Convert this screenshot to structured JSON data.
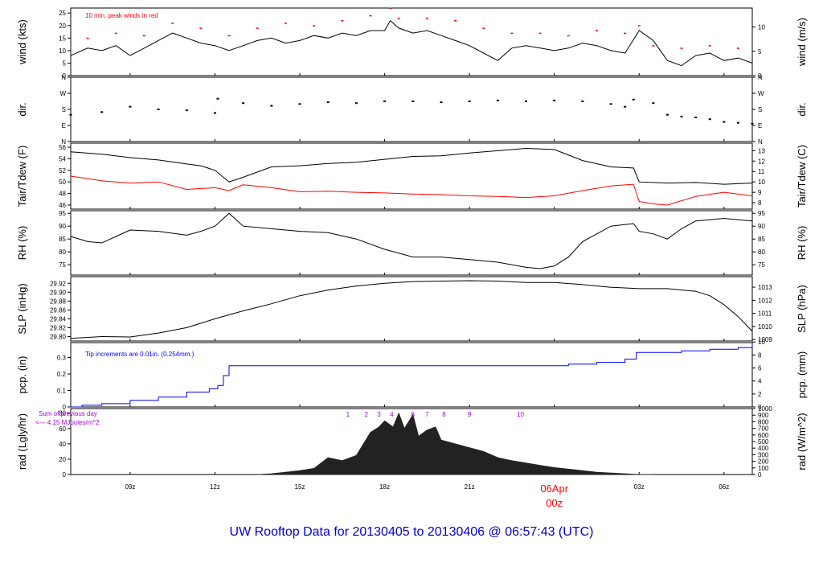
{
  "title": "UW Rooftop Data for 20130405  to  20130406 @ 06:57:43  (UTC)",
  "colors": {
    "axis": "#000000",
    "red": "#ff0000",
    "blue": "#0000ff",
    "purple": "#aa00dd",
    "title": "#0000cc"
  },
  "time_axis": {
    "range": [
      6.9,
      31.0
    ],
    "ticks": [
      {
        "t": 9,
        "label": "09z"
      },
      {
        "t": 12,
        "label": "12z"
      },
      {
        "t": 15,
        "label": "15z"
      },
      {
        "t": 18,
        "label": "18z"
      },
      {
        "t": 21,
        "label": "21z"
      },
      {
        "t": 27,
        "label": "03z"
      },
      {
        "t": 30,
        "label": "06z"
      }
    ],
    "day_tick": {
      "t": 24,
      "date": "06Apr",
      "hour": "00z"
    }
  },
  "chart_data": [
    {
      "type": "line",
      "id": "wind",
      "ylabel": "wind (kts)",
      "ylabel_right": "wind (m/s)",
      "ylim": [
        0,
        27
      ],
      "yticks": [
        0,
        5,
        10,
        15,
        20,
        25
      ],
      "yticks_right": [
        {
          "v": 0,
          "label": "0"
        },
        {
          "v": 9.72,
          "label": "5"
        },
        {
          "v": 19.44,
          "label": "10"
        }
      ],
      "annotation": "10 min. peak winds in red",
      "series": [
        {
          "color": "black",
          "x": [
            6.9,
            7.5,
            8.0,
            8.5,
            9.0,
            9.5,
            10.0,
            10.5,
            11.0,
            11.5,
            12.0,
            12.5,
            13.0,
            13.5,
            14.0,
            14.5,
            15.0,
            15.5,
            16.0,
            16.5,
            17.0,
            17.5,
            18.0,
            18.2,
            18.5,
            19.0,
            19.5,
            20.0,
            20.5,
            21.0,
            21.5,
            22.0,
            22.5,
            23.0,
            23.5,
            24.0,
            24.5,
            25.0,
            25.5,
            26.0,
            26.5,
            27.0,
            27.5,
            28.0,
            28.5,
            29.0,
            29.5,
            30.0,
            30.5,
            31.0
          ],
          "y": [
            8,
            11,
            10,
            12,
            8,
            11,
            14,
            17,
            15,
            13,
            12,
            10,
            12,
            14,
            15,
            13,
            14,
            16,
            15,
            17,
            16,
            18,
            18,
            22,
            19,
            17,
            18,
            16,
            14,
            12,
            9,
            6,
            11,
            12,
            11,
            10,
            11,
            13,
            12,
            10,
            9,
            18,
            14,
            6,
            4,
            8,
            9,
            6,
            7,
            5
          ]
        },
        {
          "color": "red",
          "x": [
            7.5,
            8.5,
            9.5,
            10.5,
            11.5,
            12.5,
            13.5,
            14.5,
            15.5,
            16.5,
            17.5,
            18.2,
            18.5,
            19.5,
            20.5,
            21.5,
            22.5,
            23.5,
            24.5,
            25.5,
            26.5,
            27.0,
            27.5,
            28.5,
            29.5,
            30.5
          ],
          "y": [
            15,
            17,
            16,
            21,
            19,
            16,
            19,
            21,
            20,
            22,
            24,
            27,
            23,
            23,
            22,
            19,
            17,
            17,
            16,
            18,
            17,
            20,
            12,
            11,
            12,
            11
          ]
        }
      ]
    },
    {
      "type": "scatter",
      "id": "dir",
      "ylabel": "dir.",
      "ylabel_right": "dir.",
      "ylim": [
        0,
        360
      ],
      "yticks": [
        {
          "v": 0,
          "label": "N"
        },
        {
          "v": 90,
          "label": "E"
        },
        {
          "v": 180,
          "label": "S"
        },
        {
          "v": 270,
          "label": "W"
        },
        {
          "v": 360,
          "label": "N"
        }
      ],
      "series": [
        {
          "color": "black",
          "x": [
            6.9,
            8.0,
            9.0,
            10.0,
            11.0,
            12.0,
            12.1,
            13.0,
            14.0,
            15.0,
            16.0,
            17.0,
            18.0,
            19.0,
            20.0,
            21.0,
            22.0,
            23.0,
            24.0,
            25.0,
            26.0,
            26.5,
            26.8,
            27.5,
            28.0,
            28.5,
            29.0,
            29.5,
            30.0,
            30.5,
            31.0
          ],
          "y": [
            150,
            165,
            195,
            180,
            175,
            160,
            240,
            215,
            200,
            210,
            220,
            215,
            225,
            225,
            220,
            225,
            230,
            225,
            230,
            225,
            210,
            195,
            235,
            215,
            150,
            140,
            135,
            125,
            110,
            105,
            100
          ]
        }
      ]
    },
    {
      "type": "line",
      "id": "temp",
      "ylabel": "Tair/Tdew (F)",
      "ylabel_right": "Tair/Tdew (C)",
      "ylim": [
        45.3,
        56.7
      ],
      "yticks": [
        46,
        48,
        50,
        52,
        54,
        56
      ],
      "yticks_right": [
        {
          "v": 46.4,
          "label": "8"
        },
        {
          "v": 48.2,
          "label": "9"
        },
        {
          "v": 50.0,
          "label": "10"
        },
        {
          "v": 51.8,
          "label": "11"
        },
        {
          "v": 53.6,
          "label": "12"
        },
        {
          "v": 55.4,
          "label": "13"
        }
      ],
      "series": [
        {
          "color": "black",
          "x": [
            6.9,
            8.0,
            9.0,
            10.0,
            11.0,
            11.5,
            12.0,
            12.5,
            13.0,
            14.0,
            15.0,
            16.0,
            17.0,
            18.0,
            19.0,
            20.0,
            21.0,
            22.0,
            23.0,
            24.0,
            25.0,
            26.0,
            26.8,
            27.0,
            28.0,
            29.0,
            30.0,
            31.0
          ],
          "y": [
            55.2,
            54.8,
            54.2,
            53.8,
            53.1,
            52.8,
            52.0,
            50.0,
            50.8,
            52.6,
            52.8,
            53.2,
            53.4,
            53.9,
            54.4,
            54.5,
            55.0,
            55.4,
            55.8,
            55.6,
            53.7,
            52.6,
            52.4,
            50.0,
            49.8,
            49.9,
            49.6,
            49.8
          ]
        },
        {
          "color": "red",
          "x": [
            6.9,
            8.0,
            9.0,
            10.0,
            11.0,
            12.0,
            12.5,
            13.0,
            14.0,
            15.0,
            16.0,
            17.0,
            18.0,
            19.0,
            20.0,
            21.0,
            22.0,
            23.0,
            24.0,
            25.0,
            26.0,
            26.8,
            27.0,
            27.5,
            28.0,
            29.0,
            30.0,
            31.0
          ],
          "y": [
            51.0,
            50.2,
            49.8,
            50.0,
            48.7,
            49.0,
            48.5,
            49.5,
            49.0,
            48.3,
            48.4,
            48.2,
            48.1,
            47.9,
            47.8,
            47.6,
            47.5,
            47.3,
            47.6,
            48.5,
            49.3,
            49.6,
            46.6,
            46.2,
            46.0,
            47.5,
            48.2,
            47.6
          ]
        }
      ]
    },
    {
      "type": "line",
      "id": "rh",
      "ylabel": "RH (%)",
      "ylabel_right": "RH (%)",
      "ylim": [
        71,
        96
      ],
      "yticks": [
        75,
        80,
        85,
        90,
        95
      ],
      "yticks_right": [
        {
          "v": 75,
          "label": "75"
        },
        {
          "v": 80,
          "label": "80"
        },
        {
          "v": 85,
          "label": "85"
        },
        {
          "v": 90,
          "label": "90"
        },
        {
          "v": 95,
          "label": "95"
        }
      ],
      "series": [
        {
          "color": "black",
          "x": [
            6.9,
            7.5,
            8.0,
            8.5,
            9.0,
            10.0,
            11.0,
            11.5,
            12.0,
            12.5,
            13.0,
            14.0,
            15.0,
            16.0,
            17.0,
            18.0,
            19.0,
            20.0,
            21.0,
            22.0,
            23.0,
            23.5,
            24.0,
            24.5,
            25.0,
            26.0,
            26.8,
            27.0,
            27.5,
            28.0,
            28.5,
            29.0,
            30.0,
            31.0
          ],
          "y": [
            86,
            84,
            83.5,
            86,
            88.5,
            88,
            86.5,
            88,
            90,
            95,
            90,
            89,
            88,
            87.5,
            85,
            81,
            78,
            78,
            77,
            76,
            74,
            73.5,
            74.5,
            78,
            84,
            90,
            91,
            88,
            87,
            85,
            89,
            92,
            93,
            92
          ]
        }
      ]
    },
    {
      "type": "line",
      "id": "slp",
      "ylabel": "SLP (inHg)",
      "ylabel_right": "SLP (hPa)",
      "ylim": [
        29.79,
        29.935
      ],
      "yticks": [
        29.8,
        29.82,
        29.84,
        29.86,
        29.88,
        29.9,
        29.92
      ],
      "yticks_right": [
        {
          "v": 29.7933,
          "label": "1009"
        },
        {
          "v": 29.8228,
          "label": "1010"
        },
        {
          "v": 29.8523,
          "label": "1011"
        },
        {
          "v": 29.8818,
          "label": "1012"
        },
        {
          "v": 29.9114,
          "label": "1013"
        }
      ],
      "series": [
        {
          "color": "black",
          "x": [
            6.9,
            8.0,
            9.0,
            10.0,
            11.0,
            12.0,
            13.0,
            14.0,
            15.0,
            16.0,
            17.0,
            18.0,
            19.0,
            20.0,
            21.0,
            22.0,
            23.0,
            24.0,
            25.0,
            26.0,
            27.0,
            28.0,
            29.0,
            29.5,
            30.0,
            30.5,
            31.0
          ],
          "y": [
            29.796,
            29.8,
            29.799,
            29.808,
            29.82,
            29.84,
            29.858,
            29.874,
            29.892,
            29.905,
            29.914,
            29.92,
            29.924,
            29.925,
            29.926,
            29.925,
            29.922,
            29.922,
            29.917,
            29.911,
            29.908,
            29.908,
            29.902,
            29.892,
            29.872,
            29.845,
            29.812
          ]
        }
      ]
    },
    {
      "type": "line",
      "id": "pcp",
      "ylabel": "pcp. (in)",
      "ylabel_right": "pcp. (mm)",
      "ylim": [
        0,
        0.39
      ],
      "yticks": [
        0.0,
        0.1,
        0.2,
        0.3
      ],
      "yticks_right": [
        {
          "v": 0,
          "label": "0"
        },
        {
          "v": 0.0787,
          "label": "2"
        },
        {
          "v": 0.1575,
          "label": "4"
        },
        {
          "v": 0.2362,
          "label": "6"
        },
        {
          "v": 0.315,
          "label": "8"
        },
        {
          "v": 0.3937,
          "label": "10"
        }
      ],
      "annotation": "Tip increments are 0.01in. (0.254mm.)",
      "series": [
        {
          "color": "blue",
          "step": true,
          "x": [
            6.9,
            7.3,
            8.0,
            9.0,
            10.0,
            11.0,
            11.8,
            12.1,
            12.3,
            12.5,
            13.5,
            16.0,
            18.0,
            20.0,
            22.0,
            24.0,
            24.5,
            25.5,
            26.5,
            26.9,
            27.5,
            28.5,
            29.5,
            30.5,
            31.0
          ],
          "y": [
            0.0,
            0.01,
            0.02,
            0.04,
            0.06,
            0.09,
            0.11,
            0.13,
            0.19,
            0.25,
            0.25,
            0.25,
            0.25,
            0.25,
            0.25,
            0.25,
            0.26,
            0.27,
            0.29,
            0.33,
            0.33,
            0.34,
            0.35,
            0.36,
            0.38
          ]
        }
      ]
    },
    {
      "type": "area",
      "id": "rad",
      "ylabel": "rad (Lgly/hr)",
      "ylabel_right": "rad (W/m^2)",
      "ylim": [
        0,
        86
      ],
      "yticks": [
        0,
        20,
        40,
        60,
        80
      ],
      "yticks_right": [
        {
          "v": 0,
          "label": "0"
        },
        {
          "v": 8.6,
          "label": "100"
        },
        {
          "v": 17.2,
          "label": "200"
        },
        {
          "v": 25.8,
          "label": "300"
        },
        {
          "v": 34.4,
          "label": "400"
        },
        {
          "v": 43.0,
          "label": "500"
        },
        {
          "v": 51.6,
          "label": "600"
        },
        {
          "v": 60.2,
          "label": "700"
        },
        {
          "v": 68.8,
          "label": "800"
        },
        {
          "v": 77.4,
          "label": "900"
        },
        {
          "v": 86.0,
          "label": "1000"
        }
      ],
      "annotation": [
        "Sum of previous day",
        "<--- 4.15 MJoules/m^2"
      ],
      "hour_marks": [
        {
          "t": 16.7,
          "label": "1"
        },
        {
          "t": 17.35,
          "label": "2"
        },
        {
          "t": 17.8,
          "label": "3"
        },
        {
          "t": 18.25,
          "label": "4"
        },
        {
          "t": 19.0,
          "label": "6"
        },
        {
          "t": 19.5,
          "label": "7"
        },
        {
          "t": 20.1,
          "label": "8"
        },
        {
          "t": 21.0,
          "label": "9"
        },
        {
          "t": 22.8,
          "label": "10"
        }
      ],
      "series": [
        {
          "color": "#222222",
          "x": [
            13.5,
            14.0,
            14.5,
            15.0,
            15.5,
            16.0,
            16.5,
            17.0,
            17.5,
            17.8,
            18.0,
            18.3,
            18.5,
            18.7,
            19.0,
            19.2,
            19.5,
            19.8,
            20.0,
            20.5,
            21.0,
            21.5,
            22.0,
            22.5,
            23.0,
            23.5,
            24.0,
            24.5,
            25.0,
            25.5,
            26.0,
            26.5,
            27.0,
            27.5
          ],
          "y": [
            0,
            1,
            3,
            5,
            8,
            22,
            18,
            25,
            55,
            62,
            70,
            62,
            80,
            60,
            78,
            50,
            58,
            62,
            45,
            40,
            35,
            30,
            22,
            18,
            15,
            12,
            9,
            7,
            5,
            3,
            2,
            1,
            0,
            0
          ]
        }
      ]
    }
  ]
}
